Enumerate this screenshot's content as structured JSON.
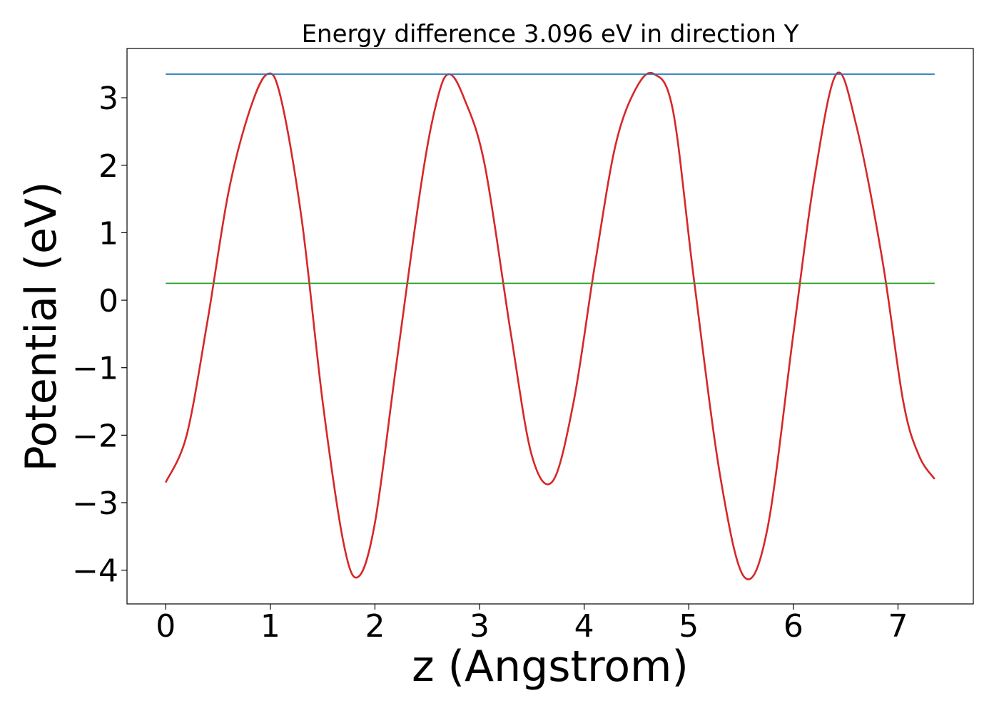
{
  "chart_data": {
    "type": "line",
    "title": "Energy difference 3.096 eV in direction Y",
    "xlabel": "z (Angstrom)",
    "ylabel": "Potential (eV)",
    "xlim": [
      -0.37,
      7.72
    ],
    "ylim": [
      -4.5,
      3.73
    ],
    "grid": false,
    "x_ticks": [
      0,
      1,
      2,
      3,
      4,
      5,
      6,
      7
    ],
    "y_ticks": [
      -4,
      -3,
      -2,
      -1,
      0,
      1,
      2,
      3
    ],
    "x_tick_labels": [
      "0",
      "1",
      "2",
      "3",
      "4",
      "5",
      "6",
      "7"
    ],
    "y_tick_labels": [
      "−4",
      "−3",
      "−2",
      "−1",
      "0",
      "1",
      "2",
      "3"
    ],
    "series": [
      {
        "color": "#d62728",
        "x": [
          0,
          0.2,
          0.4,
          0.6,
          0.8,
          0.97,
          1.1,
          1.3,
          1.5,
          1.7,
          1.84,
          2.0,
          2.2,
          2.45,
          2.6,
          2.71,
          2.85,
          3.05,
          3.3,
          3.5,
          3.7,
          3.9,
          4.1,
          4.3,
          4.5,
          4.67,
          4.85,
          5.05,
          5.3,
          5.53,
          5.75,
          6.0,
          6.2,
          6.41,
          6.6,
          6.85,
          7.05,
          7.2,
          7.35
        ],
        "y": [
          -2.7,
          -2.0,
          -0.3,
          1.6,
          2.8,
          3.35,
          3.0,
          1.2,
          -1.5,
          -3.6,
          -4.1,
          -3.3,
          -1.0,
          1.8,
          3.0,
          3.35,
          3.0,
          2.0,
          -0.5,
          -2.3,
          -2.68,
          -1.5,
          0.5,
          2.3,
          3.15,
          3.35,
          2.8,
          0.3,
          -2.6,
          -4.1,
          -3.4,
          -0.5,
          1.8,
          3.35,
          2.6,
          0.6,
          -1.5,
          -2.3,
          -2.65
        ]
      },
      {
        "color": "#1f77b4",
        "x": [
          0,
          7.35
        ],
        "y": [
          3.35,
          3.35
        ]
      },
      {
        "color": "#2ca02c",
        "x": [
          0,
          7.35
        ],
        "y": [
          0.25,
          0.25
        ]
      }
    ]
  }
}
